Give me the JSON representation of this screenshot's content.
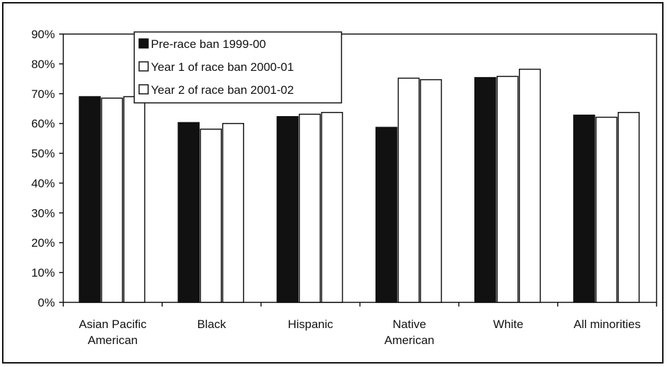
{
  "chart_data": {
    "type": "bar",
    "categories": [
      [
        "Asian Pacific",
        "American"
      ],
      [
        "Black"
      ],
      [
        "Hispanic"
      ],
      [
        "Native",
        "American"
      ],
      [
        "White"
      ],
      [
        "All minorities"
      ]
    ],
    "series": [
      {
        "name": "Pre-race ban 1999-00",
        "values": [
          69,
          60.3,
          62.3,
          58.7,
          75.4,
          62.8
        ],
        "color": "#111111"
      },
      {
        "name": "Year 1 of race ban 2000-01",
        "values": [
          68.5,
          58.1,
          63.1,
          75.2,
          75.8,
          62.1
        ],
        "color": "#ffffff"
      },
      {
        "name": "Year 2 of race ban 2001-02",
        "values": [
          69,
          60,
          63.7,
          74.7,
          78.2,
          63.7
        ],
        "color": "#ffffff"
      }
    ],
    "ylim": [
      0,
      90
    ],
    "y_ticks": [
      "0%",
      "10%",
      "20%",
      "30%",
      "40%",
      "50%",
      "60%",
      "70%",
      "80%",
      "90%"
    ],
    "y_tick_values": [
      0,
      10,
      20,
      30,
      40,
      50,
      60,
      70,
      80,
      90
    ],
    "legend_position": "top-left",
    "grid": false,
    "title": "",
    "xlabel": "",
    "ylabel": ""
  }
}
